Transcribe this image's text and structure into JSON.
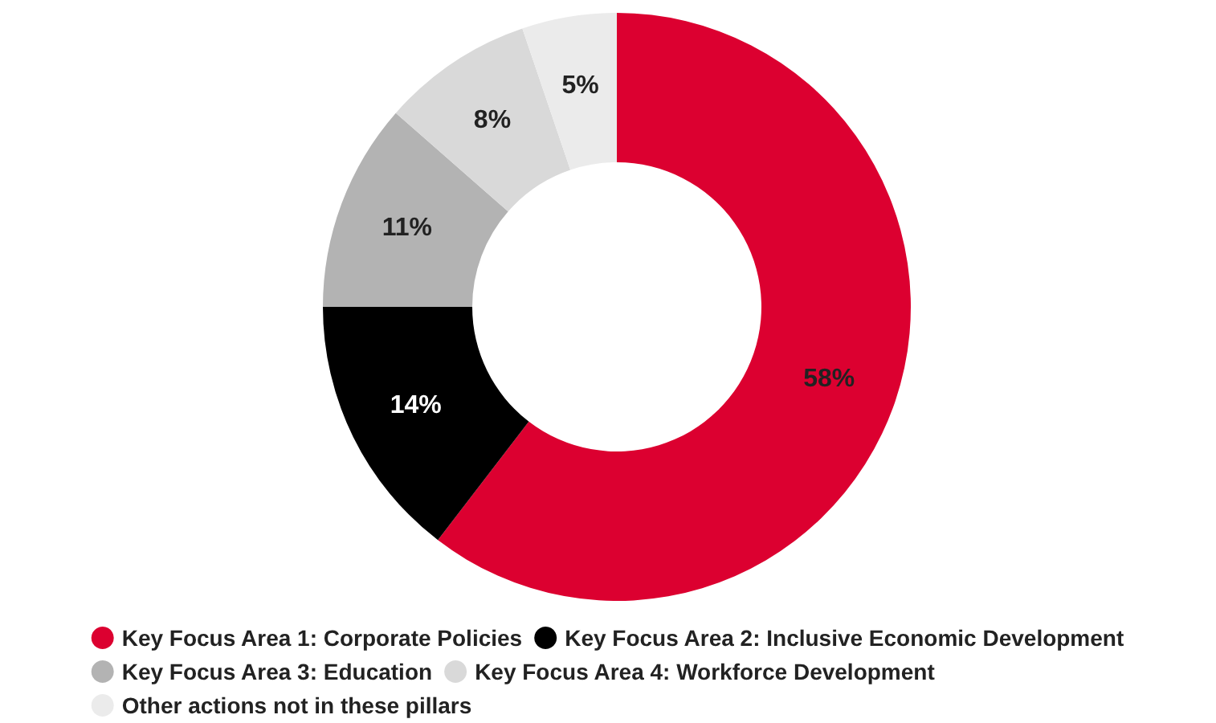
{
  "chart_data": {
    "type": "donut",
    "categories": [
      "Key Focus Area 1: Corporate Policies",
      "Key Focus Area 2: Inclusive Economic Development",
      "Key Focus Area 3: Education",
      "Key Focus Area 4: Workforce Development",
      "Other actions not in these pillars"
    ],
    "values": [
      58,
      14,
      11,
      8,
      5
    ],
    "colors": [
      "#dc0030",
      "#000000",
      "#b3b3b3",
      "#d9d9d9",
      "#ebebeb"
    ],
    "value_labels": [
      "58%",
      "14%",
      "11%",
      "8%",
      "5%"
    ],
    "legend": "bottom"
  }
}
